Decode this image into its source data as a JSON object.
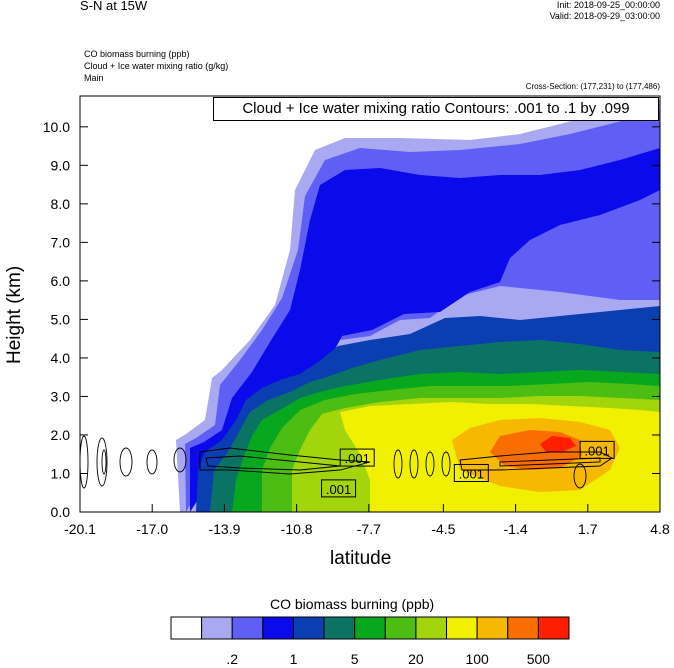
{
  "header": {
    "title": "S-N at 15W",
    "init": "Init: 2018-09-25_00:00:00",
    "valid": "Valid: 2018-09-29_03:00:00"
  },
  "meta": {
    "line1": "CO biomass burning   (ppb)",
    "line2": "Cloud + Ice water mixing ratio   (g/kg)",
    "line3": "Main",
    "cross_section": "Cross-Section: (177,231) to (177,486)"
  },
  "chart_data": {
    "type": "heatmap",
    "xlabel": "latitude",
    "ylabel": "Height (km)",
    "xlim": [
      -20.1,
      4.8
    ],
    "ylim": [
      0.0,
      10.8
    ],
    "x_ticks": [
      "-20.1",
      "-17.0",
      "-13.9",
      "-10.8",
      "-7.7",
      "-4.5",
      "-1.4",
      "1.7",
      "4.8"
    ],
    "y_ticks": [
      "0.0",
      "1.0",
      "2.0",
      "3.0",
      "4.0",
      "5.0",
      "6.0",
      "7.0",
      "8.0",
      "9.0",
      "10.0"
    ],
    "contour_title": "Cloud + Ice water mixing ratio Contours: .001 to .1 by .099",
    "contour_labels": [
      {
        "text": ".001",
        "x": -8.2,
        "y": 1.4
      },
      {
        "text": ".001",
        "x": -9.0,
        "y": 0.6
      },
      {
        "text": ".001",
        "x": -3.3,
        "y": 1.0
      },
      {
        "text": ".001",
        "x": 2.1,
        "y": 1.6
      }
    ],
    "colorbar": {
      "title": "CO biomass burning  (ppb)",
      "colors": [
        "#ffffff",
        "#a9a9f2",
        "#5f5ff6",
        "#0a0aea",
        "#0b3eb0",
        "#0a7364",
        "#08a81e",
        "#4cbd12",
        "#a3d50d",
        "#f0f000",
        "#f7b800",
        "#fa6e00",
        "#ff1e00"
      ],
      "labels": [
        ".2",
        "1",
        "5",
        "20",
        "100",
        "500"
      ]
    }
  }
}
